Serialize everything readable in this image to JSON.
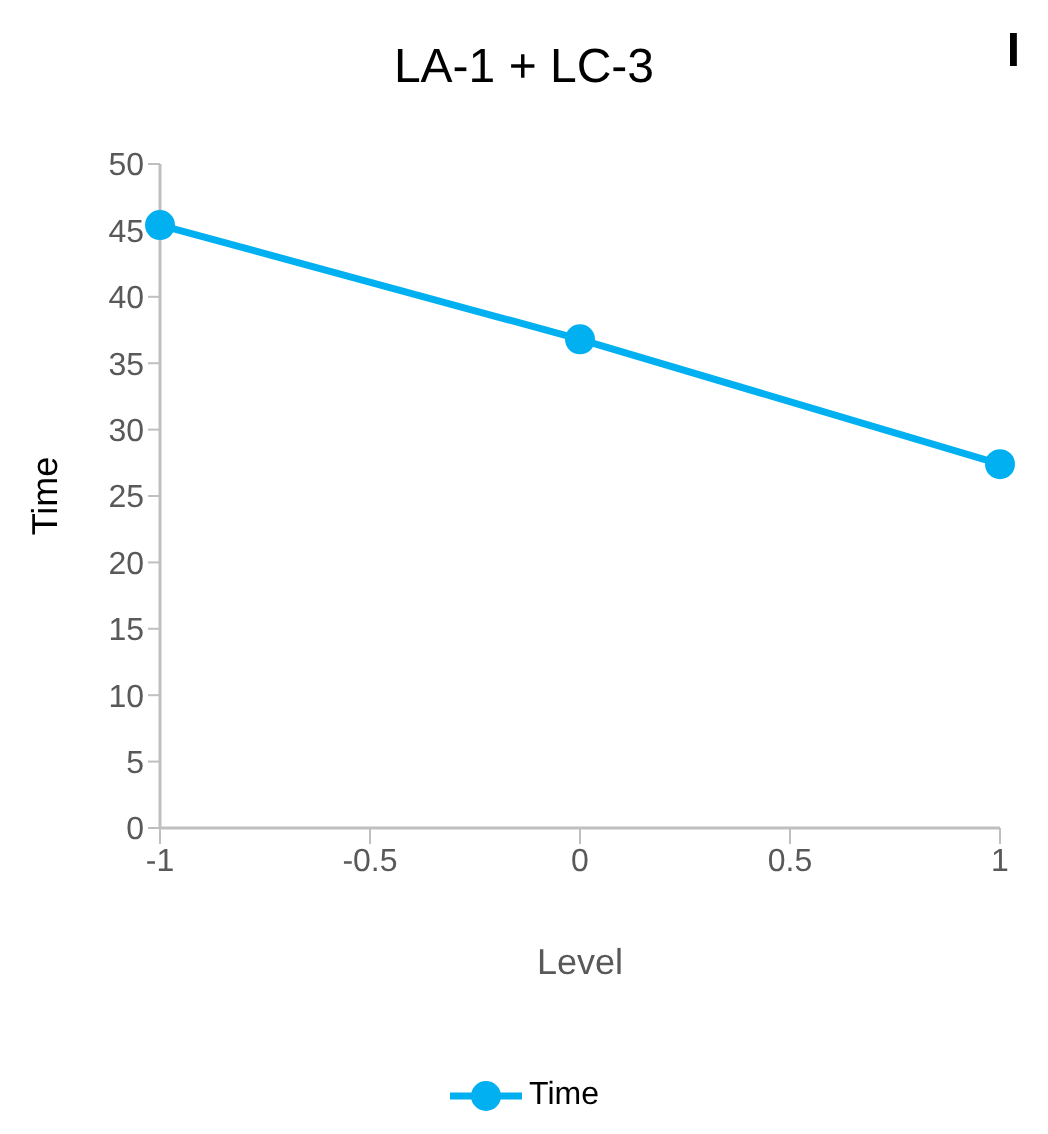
{
  "chart_data": {
    "type": "line",
    "title": "LA-1 + LC-3",
    "xlabel": "Level",
    "ylabel": "Time",
    "x": [
      -1,
      0,
      1
    ],
    "series": [
      {
        "name": "Time",
        "color": "#00b0f0",
        "values": [
          45.4,
          36.8,
          27.4
        ]
      }
    ],
    "xlim": [
      -1,
      1
    ],
    "xticks": [
      -1,
      -0.5,
      0,
      0.5,
      1
    ],
    "ylim": [
      0,
      50
    ],
    "yticks": [
      0,
      5,
      10,
      15,
      20,
      25,
      30,
      35,
      40,
      45,
      50
    ],
    "grid": false,
    "legend": "bottom",
    "marker": "circle",
    "line_style": "solid",
    "annotations": [
      "I"
    ]
  }
}
